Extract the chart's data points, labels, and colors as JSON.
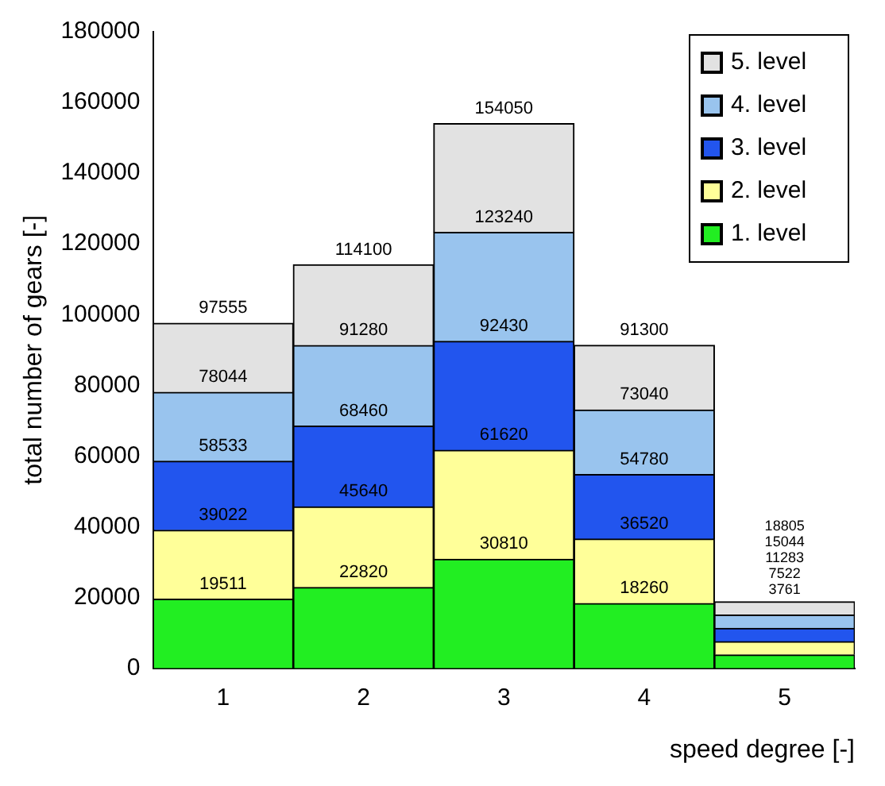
{
  "chart_data": {
    "type": "bar",
    "stacked": true,
    "xlabel": "speed degree [-]",
    "ylabel": "total number of gears [-]",
    "categories": [
      "1",
      "2",
      "3",
      "4",
      "5"
    ],
    "series": [
      {
        "name": "1. level",
        "color": "#22ee22",
        "values": [
          19511,
          22820,
          30810,
          18260,
          3761
        ]
      },
      {
        "name": "2. level",
        "color": "#ffff99",
        "values": [
          19511,
          22820,
          30810,
          18260,
          3761
        ]
      },
      {
        "name": "3. level",
        "color": "#2255ee",
        "values": [
          19511,
          22820,
          30810,
          18260,
          3761
        ]
      },
      {
        "name": "4. level",
        "color": "#99c4ee",
        "values": [
          19511,
          22820,
          30810,
          18260,
          3761
        ]
      },
      {
        "name": "5. level",
        "color": "#e2e2e2",
        "values": [
          19511,
          22820,
          30810,
          18260,
          3761
        ]
      }
    ],
    "annotations": [
      {
        "text": "19511",
        "x": "1",
        "y": 19511
      },
      {
        "text": "39022",
        "x": "1",
        "y": 39022
      },
      {
        "text": "58533",
        "x": "1",
        "y": 58533
      },
      {
        "text": "78044",
        "x": "1",
        "y": 78044
      },
      {
        "text": "97555",
        "x": "1",
        "y": 97555
      },
      {
        "text": "22820",
        "x": "2",
        "y": 22820
      },
      {
        "text": "45640",
        "x": "2",
        "y": 45640
      },
      {
        "text": "68460",
        "x": "2",
        "y": 68460
      },
      {
        "text": "91280",
        "x": "2",
        "y": 91280
      },
      {
        "text": "114100",
        "x": "2",
        "y": 114100
      },
      {
        "text": "30810",
        "x": "3",
        "y": 30810
      },
      {
        "text": "61620",
        "x": "3",
        "y": 61620
      },
      {
        "text": "92430",
        "x": "3",
        "y": 92430
      },
      {
        "text": "123240",
        "x": "3",
        "y": 123240
      },
      {
        "text": "154050",
        "x": "3",
        "y": 154050
      },
      {
        "text": "18260",
        "x": "4",
        "y": 18260
      },
      {
        "text": "36520",
        "x": "4",
        "y": 36520
      },
      {
        "text": "54780",
        "x": "4",
        "y": 54780
      },
      {
        "text": "73040",
        "x": "4",
        "y": 73040
      },
      {
        "text": "91300",
        "x": "4",
        "y": 91300
      },
      "18805",
      "15044",
      "11283",
      "7522",
      "3761"
    ],
    "ylim": [
      0,
      180000
    ],
    "yticks": [
      0,
      20000,
      40000,
      60000,
      80000,
      100000,
      120000,
      140000,
      160000,
      180000
    ],
    "grid": false,
    "legend": "top right"
  }
}
